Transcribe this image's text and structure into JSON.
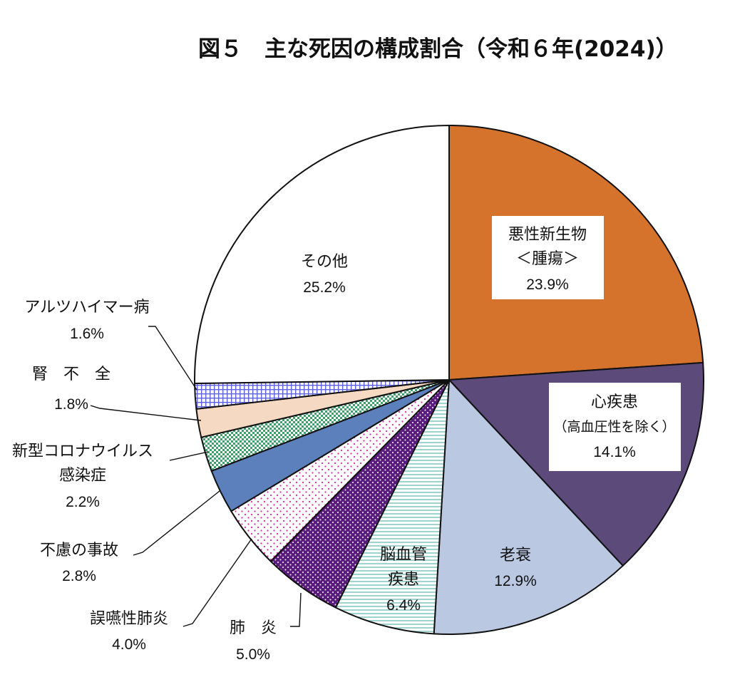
{
  "chart_data": {
    "type": "pie",
    "title": "図５　主な死因の構成割合（令和６年(2024)）",
    "unit": "%",
    "start_angle_deg": 0,
    "direction": "clockwise",
    "slices": [
      {
        "name": "悪性新生物",
        "sub": "＜腫瘍＞",
        "value": 23.9,
        "pct_label": "23.9%",
        "color": "#d5722c"
      },
      {
        "name": "心疾患",
        "sub": "（高血圧性を除く）",
        "value": 14.1,
        "pct_label": "14.1%",
        "color": "#5b4a7a"
      },
      {
        "name": "老衰",
        "value": 12.9,
        "pct_label": "12.9%",
        "color": "#bac8e2"
      },
      {
        "name": "脳血管",
        "sub": "疾患",
        "value": 6.4,
        "pct_label": "6.4%",
        "color": "#d9f0ee"
      },
      {
        "name": "肺　炎",
        "value": 5.0,
        "pct_label": "5.0%",
        "color": "#5a1c7c"
      },
      {
        "name": "誤嚥性肺炎",
        "value": 4.0,
        "pct_label": "4.0%",
        "color": "#ffffff"
      },
      {
        "name": "不慮の事故",
        "value": 2.8,
        "pct_label": "2.8%",
        "color": "#5b80bb"
      },
      {
        "name": "新型コロナウイルス",
        "sub": "感染症",
        "value": 2.2,
        "pct_label": "2.2%",
        "color": "#ffffff"
      },
      {
        "name": "腎　不　全",
        "value": 1.8,
        "pct_label": "1.8%",
        "color": "#f6d9c3"
      },
      {
        "name": "アルツハイマー病",
        "value": 1.6,
        "pct_label": "1.6%",
        "color": "#ffffff"
      },
      {
        "name": "その他",
        "value": 25.2,
        "pct_label": "25.2%",
        "color": "#ffffff"
      }
    ]
  }
}
